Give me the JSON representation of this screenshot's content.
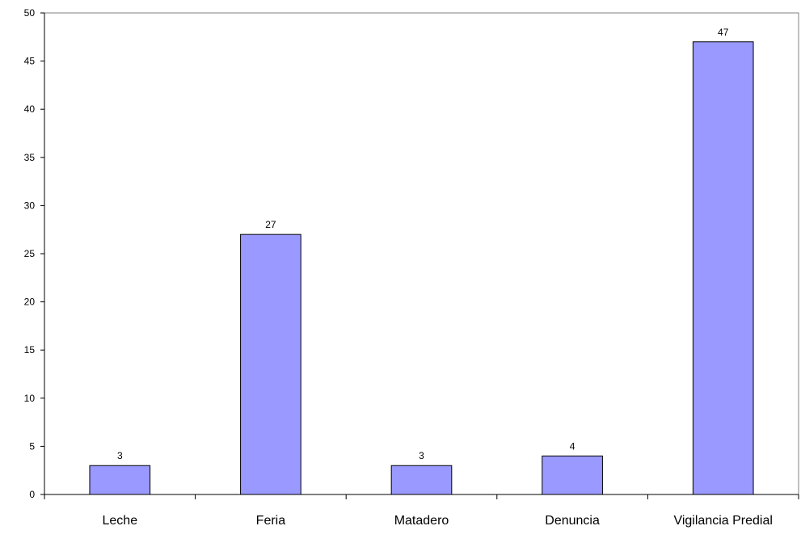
{
  "chart_data": {
    "type": "bar",
    "categories": [
      "Leche",
      "Feria",
      "Matadero",
      "Denuncia",
      "Vigilancia Predial"
    ],
    "values": [
      3,
      27,
      3,
      4,
      47
    ],
    "data_labels": [
      "3",
      "27",
      "3",
      "4",
      "47"
    ],
    "title": "",
    "xlabel": "",
    "ylabel": "",
    "ylim": [
      0,
      50
    ],
    "yticks": [
      0,
      5,
      10,
      15,
      20,
      25,
      30,
      35,
      40,
      45,
      50
    ],
    "grid": false,
    "legend": "none",
    "bar_color": "#9999ff",
    "bar_edge_color": "#000000"
  }
}
